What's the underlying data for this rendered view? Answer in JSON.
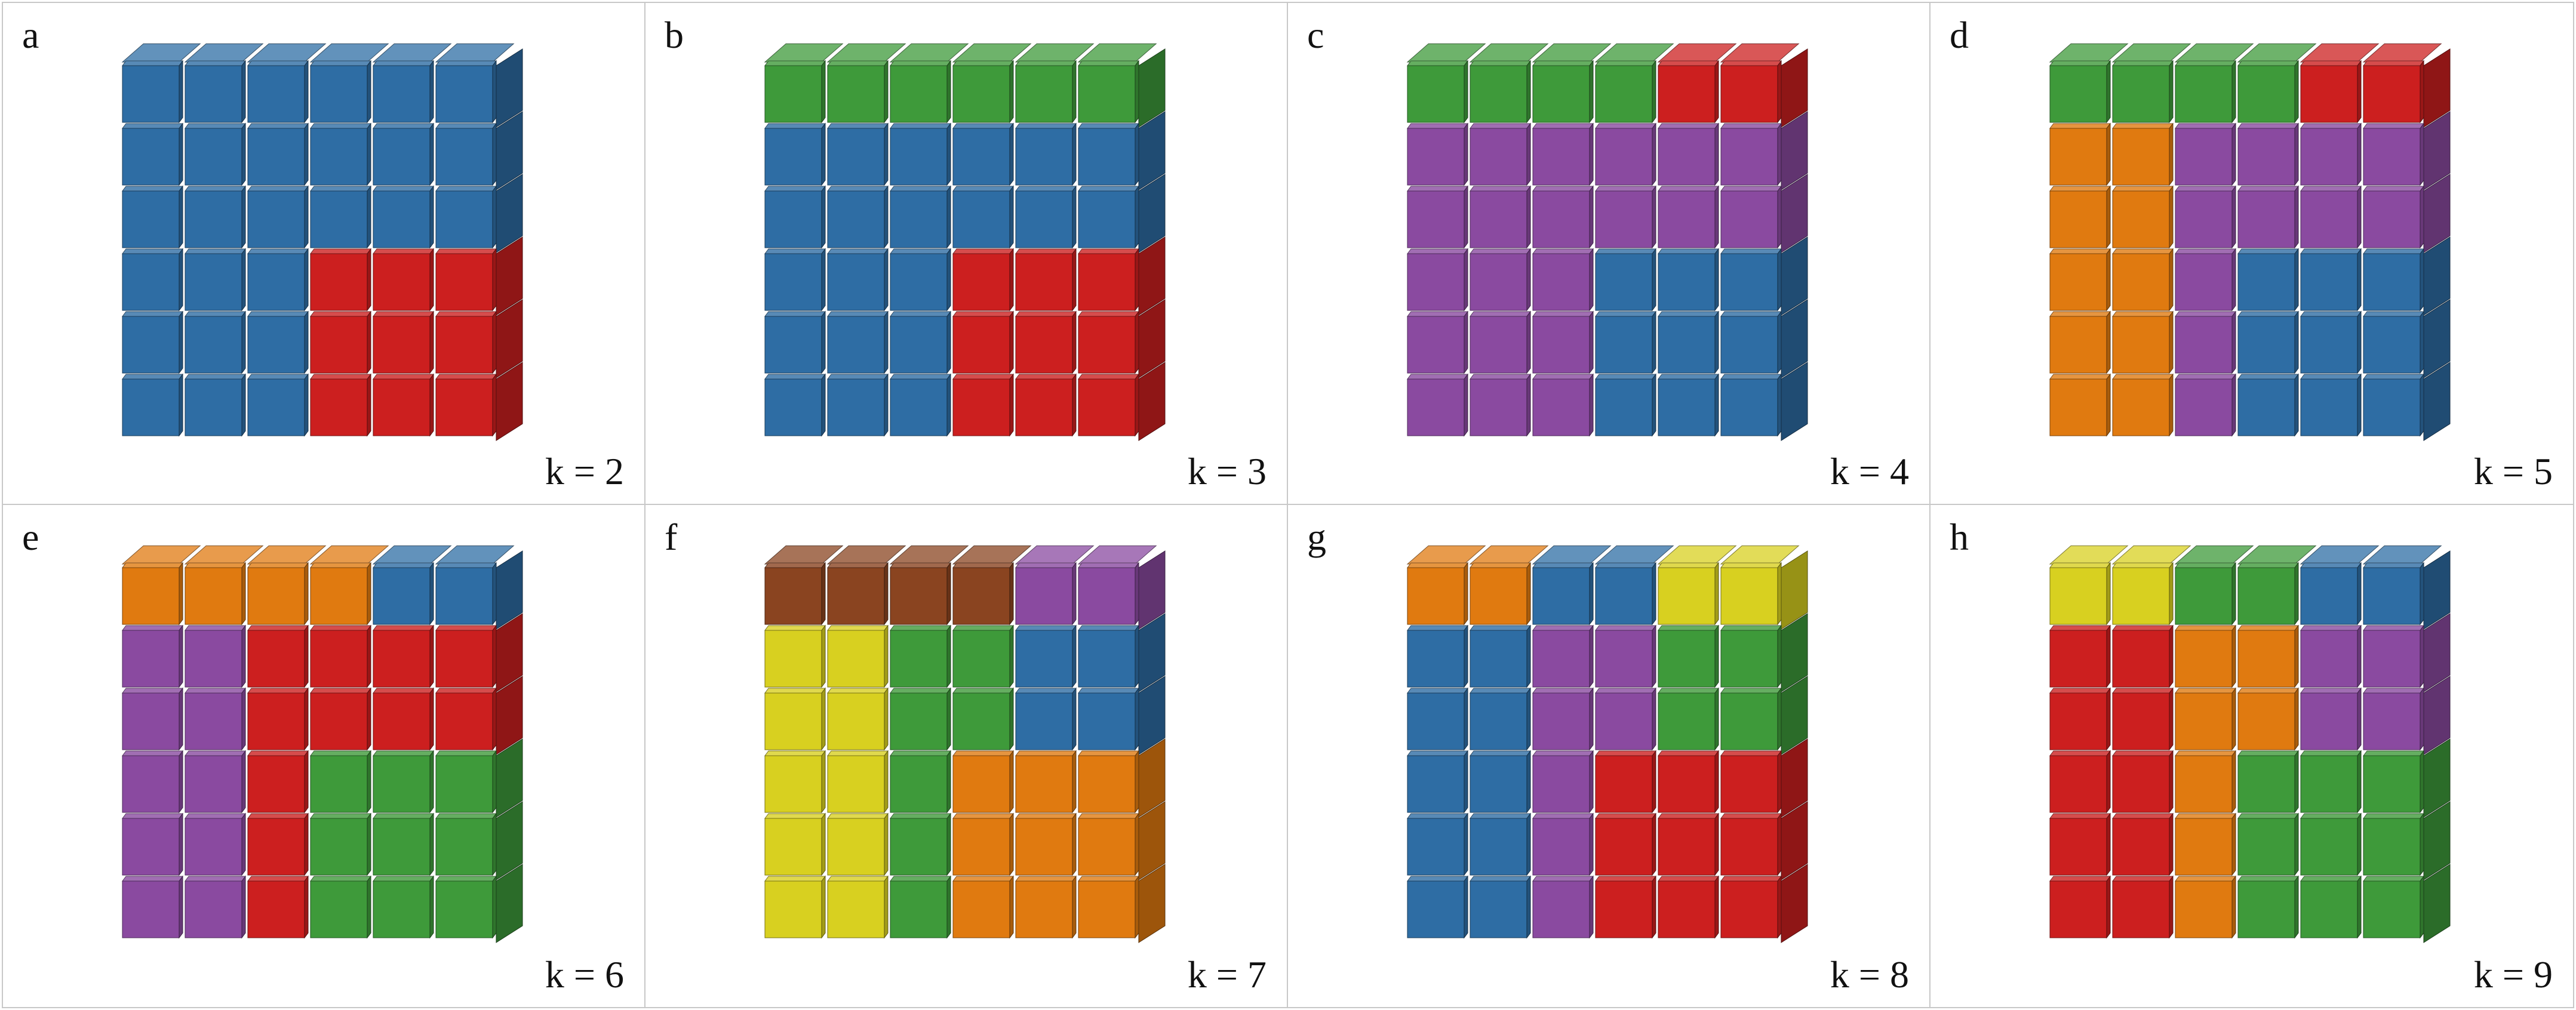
{
  "colors": {
    "blue": "#2e6da4",
    "red": "#cc1f1f",
    "green": "#3e9a3a",
    "purple": "#8a4aa0",
    "orange": "#e07a10",
    "yellow": "#d8d020",
    "brown": "#8a4420"
  },
  "panels": [
    {
      "letter": "a",
      "k_label": "k = 2",
      "top": [
        "blue",
        "blue",
        "blue",
        "blue",
        "blue",
        "blue"
      ],
      "front": [
        [
          "blue",
          "blue",
          "blue",
          "blue",
          "blue",
          "blue"
        ],
        [
          "blue",
          "blue",
          "blue",
          "blue",
          "blue",
          "blue"
        ],
        [
          "blue",
          "blue",
          "blue",
          "blue",
          "blue",
          "blue"
        ],
        [
          "blue",
          "blue",
          "blue",
          "red",
          "red",
          "red"
        ],
        [
          "blue",
          "blue",
          "blue",
          "red",
          "red",
          "red"
        ],
        [
          "blue",
          "blue",
          "blue",
          "red",
          "red",
          "red"
        ]
      ]
    },
    {
      "letter": "b",
      "k_label": "k = 3",
      "top": [
        "green",
        "green",
        "green",
        "green",
        "green",
        "green"
      ],
      "front": [
        [
          "green",
          "green",
          "green",
          "green",
          "green",
          "green"
        ],
        [
          "blue",
          "blue",
          "blue",
          "blue",
          "blue",
          "blue"
        ],
        [
          "blue",
          "blue",
          "blue",
          "blue",
          "blue",
          "blue"
        ],
        [
          "blue",
          "blue",
          "blue",
          "red",
          "red",
          "red"
        ],
        [
          "blue",
          "blue",
          "blue",
          "red",
          "red",
          "red"
        ],
        [
          "blue",
          "blue",
          "blue",
          "red",
          "red",
          "red"
        ]
      ]
    },
    {
      "letter": "c",
      "k_label": "k = 4",
      "top": [
        "green",
        "green",
        "green",
        "green",
        "red",
        "red"
      ],
      "front": [
        [
          "green",
          "green",
          "green",
          "green",
          "red",
          "red"
        ],
        [
          "purple",
          "purple",
          "purple",
          "purple",
          "purple",
          "purple"
        ],
        [
          "purple",
          "purple",
          "purple",
          "purple",
          "purple",
          "purple"
        ],
        [
          "purple",
          "purple",
          "purple",
          "blue",
          "blue",
          "blue"
        ],
        [
          "purple",
          "purple",
          "purple",
          "blue",
          "blue",
          "blue"
        ],
        [
          "purple",
          "purple",
          "purple",
          "blue",
          "blue",
          "blue"
        ]
      ]
    },
    {
      "letter": "d",
      "k_label": "k = 5",
      "top": [
        "green",
        "green",
        "green",
        "green",
        "red",
        "red"
      ],
      "front": [
        [
          "green",
          "green",
          "green",
          "green",
          "red",
          "red"
        ],
        [
          "orange",
          "orange",
          "purple",
          "purple",
          "purple",
          "purple"
        ],
        [
          "orange",
          "orange",
          "purple",
          "purple",
          "purple",
          "purple"
        ],
        [
          "orange",
          "orange",
          "purple",
          "blue",
          "blue",
          "blue"
        ],
        [
          "orange",
          "orange",
          "purple",
          "blue",
          "blue",
          "blue"
        ],
        [
          "orange",
          "orange",
          "purple",
          "blue",
          "blue",
          "blue"
        ]
      ]
    },
    {
      "letter": "e",
      "k_label": "k = 6",
      "top": [
        "orange",
        "orange",
        "orange",
        "orange",
        "blue",
        "blue"
      ],
      "front": [
        [
          "orange",
          "orange",
          "orange",
          "orange",
          "blue",
          "blue"
        ],
        [
          "purple",
          "purple",
          "red",
          "red",
          "red",
          "red"
        ],
        [
          "purple",
          "purple",
          "red",
          "red",
          "red",
          "red"
        ],
        [
          "purple",
          "purple",
          "red",
          "green",
          "green",
          "green"
        ],
        [
          "purple",
          "purple",
          "red",
          "green",
          "green",
          "green"
        ],
        [
          "purple",
          "purple",
          "red",
          "green",
          "green",
          "green"
        ]
      ]
    },
    {
      "letter": "f",
      "k_label": "k = 7",
      "top": [
        "brown",
        "brown",
        "brown",
        "brown",
        "purple",
        "purple"
      ],
      "front": [
        [
          "brown",
          "brown",
          "brown",
          "brown",
          "purple",
          "purple"
        ],
        [
          "yellow",
          "yellow",
          "green",
          "green",
          "blue",
          "blue"
        ],
        [
          "yellow",
          "yellow",
          "green",
          "green",
          "blue",
          "blue"
        ],
        [
          "yellow",
          "yellow",
          "green",
          "orange",
          "orange",
          "orange"
        ],
        [
          "yellow",
          "yellow",
          "green",
          "orange",
          "orange",
          "orange"
        ],
        [
          "yellow",
          "yellow",
          "green",
          "orange",
          "orange",
          "orange"
        ]
      ]
    },
    {
      "letter": "g",
      "k_label": "k = 8",
      "top": [
        "orange",
        "orange",
        "blue",
        "blue",
        "yellow",
        "yellow"
      ],
      "front": [
        [
          "orange",
          "orange",
          "blue",
          "blue",
          "yellow",
          "yellow"
        ],
        [
          "blue",
          "blue",
          "purple",
          "purple",
          "green",
          "green"
        ],
        [
          "blue",
          "blue",
          "purple",
          "purple",
          "green",
          "green"
        ],
        [
          "blue",
          "blue",
          "purple",
          "red",
          "red",
          "red"
        ],
        [
          "blue",
          "blue",
          "purple",
          "red",
          "red",
          "red"
        ],
        [
          "blue",
          "blue",
          "purple",
          "red",
          "red",
          "red"
        ]
      ]
    },
    {
      "letter": "h",
      "k_label": "k = 9",
      "top": [
        "yellow",
        "yellow",
        "green",
        "green",
        "blue",
        "blue"
      ],
      "front": [
        [
          "yellow",
          "yellow",
          "green",
          "green",
          "blue",
          "blue"
        ],
        [
          "red",
          "red",
          "orange",
          "orange",
          "purple",
          "purple"
        ],
        [
          "red",
          "red",
          "orange",
          "orange",
          "purple",
          "purple"
        ],
        [
          "red",
          "red",
          "orange",
          "green",
          "green",
          "green"
        ],
        [
          "red",
          "red",
          "orange",
          "green",
          "green",
          "green"
        ],
        [
          "red",
          "red",
          "orange",
          "green",
          "green",
          "green"
        ]
      ]
    }
  ]
}
